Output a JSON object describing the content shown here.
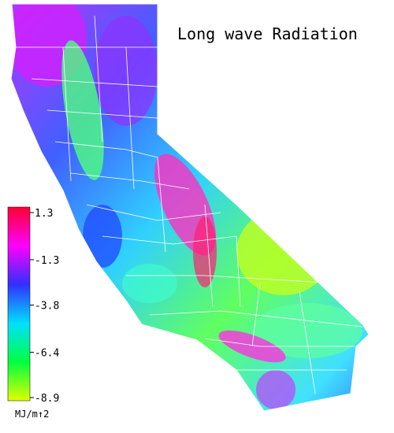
{
  "title": "Long wave Radiation",
  "colorbar": {
    "range": [
      -8.9,
      1.3
    ],
    "ticks": [
      1.3,
      -1.3,
      -3.8,
      -6.4,
      -8.9
    ],
    "unit": "MJ/m↑2",
    "colormap": [
      "#ff0030",
      "#ff00ff",
      "#3030ff",
      "#00e0ff",
      "#00ff40",
      "#e0ff00"
    ]
  }
}
